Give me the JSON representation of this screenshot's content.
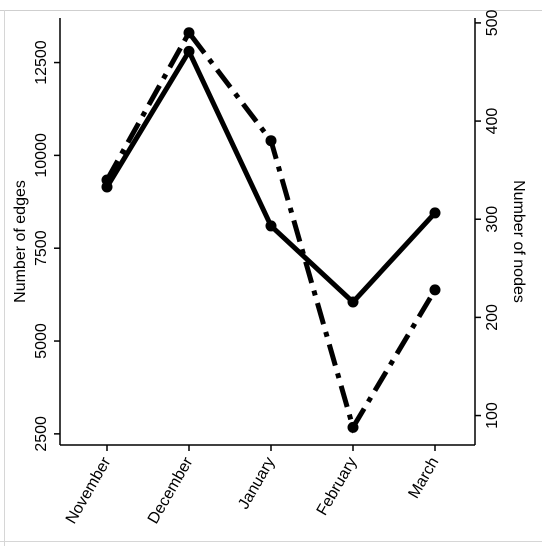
{
  "chart_data": {
    "type": "line",
    "categories": [
      "November",
      "December",
      "January",
      "February",
      "March"
    ],
    "ylabel": "Number of edges",
    "y2label": "Number of nodes",
    "ylim": [
      2200,
      13700
    ],
    "y2lim": [
      70,
      505
    ],
    "yticks": [
      2500,
      5000,
      7500,
      10000,
      12500
    ],
    "y2ticks": [
      100,
      200,
      300,
      400,
      500
    ],
    "series": [
      {
        "axis": "left",
        "style": "solid",
        "values": [
          9150,
          12800,
          8100,
          6050,
          8450
        ]
      },
      {
        "axis": "right",
        "style": "dashdot",
        "values": [
          340,
          490,
          380,
          88,
          228
        ]
      }
    ],
    "grid": false,
    "legend": "none"
  },
  "colors": {
    "line": "#000000",
    "background": "#ffffff"
  }
}
